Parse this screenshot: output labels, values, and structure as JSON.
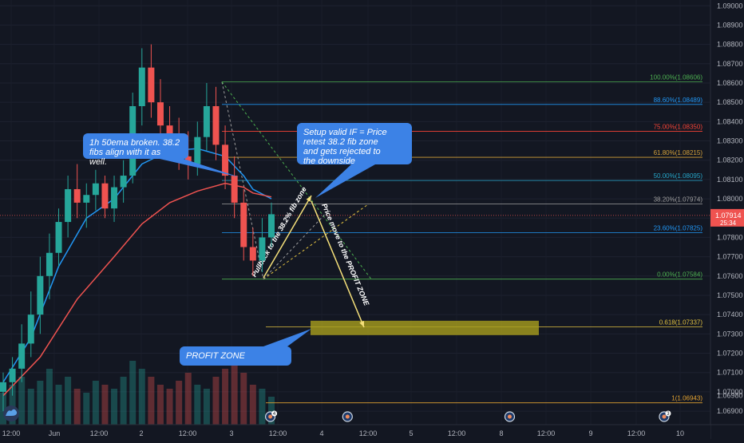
{
  "chart_data": {
    "type": "candlestick",
    "symbol_pair_hint": "",
    "y_axis": {
      "range": [
        1.0683,
        1.0903
      ],
      "ticks": [
        "1.09000",
        "1.08900",
        "1.08800",
        "1.08700",
        "1.08600",
        "1.08500",
        "1.08400",
        "1.08300",
        "1.08200",
        "1.08100",
        "1.08000",
        "1.07900",
        "1.07800",
        "1.07700",
        "1.07600",
        "1.07500",
        "1.07400",
        "1.07300",
        "1.07200",
        "1.07100",
        "1.07000",
        "1.06900"
      ],
      "tick_values": [
        1.09,
        1.089,
        1.088,
        1.087,
        1.086,
        1.085,
        1.084,
        1.083,
        1.082,
        1.081,
        1.08,
        1.079,
        1.078,
        1.077,
        1.076,
        1.075,
        1.074,
        1.073,
        1.072,
        1.071,
        1.07,
        1.069
      ],
      "second_tick_extra": "1.06980",
      "second_tick_extra_value": 1.0698
    },
    "x_axis": {
      "labels": [
        "12:00",
        "Jun",
        "12:00",
        "2",
        "12:00",
        "3",
        "12:00",
        "4",
        "12:00",
        "5",
        "12:00",
        "8",
        "12:00",
        "9",
        "12:00",
        "10"
      ],
      "time_range": [
        0,
        46
      ]
    },
    "current_price": {
      "price": "1.07914",
      "countdown": "25:34",
      "value": 1.07914
    },
    "candles": [
      [
        0,
        1.07,
        1.071,
        1.069,
        1.0705
      ],
      [
        1,
        1.0705,
        1.0718,
        1.0698,
        1.0712
      ],
      [
        2,
        1.0712,
        1.0735,
        1.0705,
        1.0725
      ],
      [
        3,
        1.0725,
        1.0752,
        1.0718,
        1.074
      ],
      [
        4,
        1.074,
        1.077,
        1.073,
        1.076
      ],
      [
        5,
        1.076,
        1.0782,
        1.0748,
        1.0772
      ],
      [
        6,
        1.0772,
        1.0795,
        1.0765,
        1.0788
      ],
      [
        7,
        1.0788,
        1.0812,
        1.078,
        1.0805
      ],
      [
        8,
        1.0805,
        1.0818,
        1.079,
        1.0798
      ],
      [
        9,
        1.0798,
        1.0808,
        1.0785,
        1.0802
      ],
      [
        10,
        1.0802,
        1.0815,
        1.0794,
        1.0808
      ],
      [
        11,
        1.0808,
        1.0812,
        1.079,
        1.0795
      ],
      [
        12,
        1.0795,
        1.0812,
        1.0788,
        1.0806
      ],
      [
        13,
        1.0806,
        1.082,
        1.0798,
        1.0812
      ],
      [
        14,
        1.0812,
        1.0855,
        1.0808,
        1.0848
      ],
      [
        15,
        1.0848,
        1.0878,
        1.0838,
        1.0868
      ],
      [
        16,
        1.0868,
        1.088,
        1.0842,
        1.085
      ],
      [
        17,
        1.085,
        1.0862,
        1.083,
        1.0838
      ],
      [
        18,
        1.0838,
        1.0848,
        1.0822,
        1.083
      ],
      [
        19,
        1.083,
        1.0842,
        1.0815,
        1.0822
      ],
      [
        20,
        1.0822,
        1.0835,
        1.081,
        1.0818
      ],
      [
        21,
        1.0818,
        1.084,
        1.0812,
        1.0832
      ],
      [
        22,
        1.0832,
        1.086,
        1.0825,
        1.0848
      ],
      [
        23,
        1.0848,
        1.0858,
        1.082,
        1.0828
      ],
      [
        24,
        1.0828,
        1.0838,
        1.0805,
        1.0812
      ],
      [
        25,
        1.0812,
        1.0822,
        1.079,
        1.0798
      ],
      [
        26,
        1.0798,
        1.0805,
        1.0768,
        1.0775
      ],
      [
        27,
        1.0775,
        1.0785,
        1.076,
        1.0768
      ],
      [
        28,
        1.0768,
        1.079,
        1.0762,
        1.078
      ],
      [
        29,
        1.078,
        1.0798,
        1.0775,
        1.0792
      ]
    ],
    "ema_blue": [
      [
        0,
        1.0705
      ],
      [
        3,
        1.0728
      ],
      [
        6,
        1.0765
      ],
      [
        9,
        1.079
      ],
      [
        12,
        1.08
      ],
      [
        15,
        1.0818
      ],
      [
        18,
        1.0825
      ],
      [
        21,
        1.0826
      ],
      [
        24,
        1.0822
      ],
      [
        26,
        1.0812
      ],
      [
        27,
        1.0805
      ],
      [
        29,
        1.08
      ]
    ],
    "ema_red": [
      [
        0,
        1.0698
      ],
      [
        4,
        1.0718
      ],
      [
        8,
        1.0748
      ],
      [
        12,
        1.077
      ],
      [
        15,
        1.0787
      ],
      [
        18,
        1.0798
      ],
      [
        21,
        1.0804
      ],
      [
        24,
        1.0808
      ],
      [
        26,
        1.0806
      ],
      [
        27,
        1.0803
      ],
      [
        29,
        1.0801
      ]
    ],
    "volume": [
      8,
      10,
      12,
      9,
      11,
      14,
      10,
      12,
      9,
      8,
      11,
      10,
      9,
      12,
      16,
      14,
      12,
      10,
      9,
      11,
      13,
      10,
      9,
      12,
      14,
      16,
      13,
      10,
      9,
      7
    ],
    "fib_levels": [
      {
        "label": "100.00%(1.08606)",
        "value": 1.08606,
        "color": "#4caf50"
      },
      {
        "label": "88.60%(1.08489)",
        "value": 1.08489,
        "color": "#2196f3"
      },
      {
        "label": "75.00%(1.08350)",
        "value": 1.0835,
        "color": "#f44336"
      },
      {
        "label": "61.80%(1.08215)",
        "value": 1.08215,
        "color": "#d4a13a"
      },
      {
        "label": "50.00%(1.08095)",
        "value": 1.08095,
        "color": "#26a6c9"
      },
      {
        "label": "38.20%(1.07974)",
        "value": 1.07974,
        "color": "#9e9e9e"
      },
      {
        "label": "23.60%(1.07825)",
        "value": 1.07825,
        "color": "#2196f3"
      },
      {
        "label": "0.00%(1.07584)",
        "value": 1.07584,
        "color": "#4caf50"
      },
      {
        "label": "0.618(1.07337)",
        "value": 1.07337,
        "color": "#e0c040"
      },
      {
        "label": "1(1.06943)",
        "value": 1.06943,
        "color": "#e0a030"
      }
    ],
    "annotations": {
      "callout_ema": "1h 50ema broken. 38.2 fibs align with it as well.",
      "callout_setup": "Setup valid IF = Price retest 38.2 fib zone and gets rejected to the downside",
      "callout_profit": "PROFIT ZONE",
      "arrow_pullback": "Pullback to the 38.2% fib zone",
      "arrow_move": "Price move to the PROFIT ZONE"
    },
    "colors": {
      "background": "#131722",
      "bull": "#26a69a",
      "bear": "#ef5350",
      "ema_blue": "#2196f3",
      "ema_red": "#ef5350",
      "callout": "#3c82e6",
      "profit_zone": "#a89d1e",
      "arrow": "#f5e07a"
    },
    "event_markers": [
      {
        "time": 17.5,
        "badge": "4"
      },
      {
        "time": 22.5,
        "badge": ""
      },
      {
        "time": 33,
        "badge": ""
      },
      {
        "time": 43,
        "badge": "3"
      }
    ]
  }
}
